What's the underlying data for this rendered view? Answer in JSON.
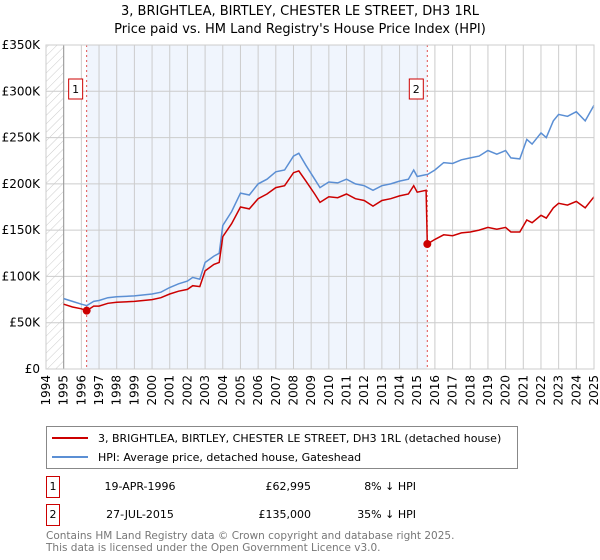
{
  "chart_data": {
    "type": "line",
    "title": "3, BRIGHTLEA, BIRTLEY, CHESTER LE STREET, DH3 1RL",
    "subtitle": "Price paid vs. HM Land Registry's House Price Index (HPI)",
    "xlim": [
      1994,
      2025
    ],
    "ylim": [
      0,
      350000
    ],
    "y_ticks": [
      0,
      50000,
      100000,
      150000,
      200000,
      250000,
      300000,
      350000
    ],
    "y_tick_labels": [
      "£0",
      "£50K",
      "£100K",
      "£150K",
      "£200K",
      "£250K",
      "£300K",
      "£350K"
    ],
    "x_ticks": [
      "1994",
      "1995",
      "1996",
      "1997",
      "1998",
      "1999",
      "2000",
      "2001",
      "2002",
      "2003",
      "2004",
      "2005",
      "2006",
      "2007",
      "2008",
      "2009",
      "2010",
      "2011",
      "2012",
      "2013",
      "2014",
      "2015",
      "2016",
      "2017",
      "2018",
      "2019",
      "2020",
      "2021",
      "2022",
      "2023",
      "2024",
      "2025"
    ],
    "grid": true,
    "series": [
      {
        "name": "3, BRIGHTLEA, BIRTLEY, CHESTER LE STREET, DH3 1RL (detached house)",
        "color": "#cc0000",
        "x": [
          1995,
          1995.5,
          1996,
          1996.3,
          1996.7,
          1997,
          1997.5,
          1998,
          1999,
          2000,
          2000.5,
          2001,
          2001.5,
          2002,
          2002.3,
          2002.7,
          2003,
          2003.5,
          2003.8,
          2004,
          2004.5,
          2005,
          2005.5,
          2006,
          2006.5,
          2007,
          2007.5,
          2008,
          2008.3,
          2008.7,
          2009.2,
          2009.5,
          2010,
          2010.5,
          2011,
          2011.5,
          2012,
          2012.5,
          2013,
          2013.5,
          2014,
          2014.5,
          2014.8,
          2015,
          2015.5,
          2015.57,
          2016,
          2016.5,
          2017,
          2017.5,
          2018,
          2018.5,
          2019,
          2019.5,
          2020,
          2020.3,
          2020.8,
          2021.2,
          2021.5,
          2022,
          2022.3,
          2022.7,
          2023,
          2023.5,
          2024,
          2024.5,
          2025
        ],
        "values": [
          70000,
          67000,
          65000,
          62995,
          68000,
          68000,
          71000,
          72000,
          73000,
          75000,
          77000,
          81000,
          84000,
          86000,
          90000,
          89000,
          106000,
          113000,
          115000,
          143000,
          157000,
          175000,
          173000,
          184000,
          189000,
          196000,
          198000,
          212000,
          214000,
          203000,
          189000,
          180000,
          186000,
          185000,
          189000,
          184000,
          182000,
          176000,
          182000,
          184000,
          187000,
          189000,
          198000,
          191000,
          193000,
          135000,
          140000,
          145000,
          144000,
          147000,
          148000,
          150000,
          153000,
          151000,
          153000,
          148000,
          148000,
          161000,
          158000,
          166000,
          163000,
          174000,
          179000,
          177000,
          181000,
          174000,
          186000
        ]
      },
      {
        "name": "HPI: Average price, detached house, Gateshead",
        "color": "#5b8fd4",
        "x": [
          1995,
          1995.5,
          1996,
          1996.3,
          1996.7,
          1997,
          1997.5,
          1998,
          1999,
          2000,
          2000.5,
          2001,
          2001.5,
          2002,
          2002.3,
          2002.7,
          2003,
          2003.5,
          2003.8,
          2004,
          2004.5,
          2005,
          2005.5,
          2006,
          2006.5,
          2007,
          2007.5,
          2008,
          2008.3,
          2008.7,
          2009.2,
          2009.5,
          2010,
          2010.5,
          2011,
          2011.5,
          2012,
          2012.5,
          2013,
          2013.5,
          2014,
          2014.5,
          2014.8,
          2015,
          2015.5,
          2015.57,
          2016,
          2016.5,
          2017,
          2017.5,
          2018,
          2018.5,
          2019,
          2019.5,
          2020,
          2020.3,
          2020.8,
          2021.2,
          2021.5,
          2022,
          2022.3,
          2022.7,
          2023,
          2023.5,
          2024,
          2024.5,
          2025
        ],
        "values": [
          76000,
          73000,
          70000,
          68500,
          73000,
          74000,
          77000,
          78000,
          79000,
          81000,
          83000,
          88000,
          92000,
          95000,
          99000,
          97000,
          115000,
          122000,
          125000,
          155000,
          170000,
          190000,
          188000,
          200000,
          205000,
          213000,
          215000,
          230000,
          233000,
          220000,
          205000,
          196000,
          202000,
          201000,
          205000,
          200000,
          198000,
          193000,
          198000,
          200000,
          203000,
          205000,
          215000,
          208000,
          210000,
          210000,
          215000,
          223000,
          222000,
          226000,
          228000,
          230000,
          236000,
          232000,
          236000,
          228000,
          227000,
          248000,
          243000,
          255000,
          250000,
          268000,
          275000,
          273000,
          278000,
          268000,
          285000
        ]
      }
    ],
    "annotations": [
      {
        "label": "1",
        "x": 1996.3,
        "value": 62995
      },
      {
        "label": "2",
        "x": 2015.57,
        "value": 135000
      }
    ],
    "legend_placement": "below"
  },
  "transactions": [
    {
      "num": "1",
      "date": "19-APR-1996",
      "price": "£62,995",
      "hpi": "8% ↓ HPI"
    },
    {
      "num": "2",
      "date": "27-JUL-2015",
      "price": "£135,000",
      "hpi": "35% ↓ HPI"
    }
  ],
  "footer": {
    "line1": "Contains HM Land Registry data © Crown copyright and database right 2025.",
    "line2": "This data is licensed under the Open Government Licence v3.0."
  }
}
